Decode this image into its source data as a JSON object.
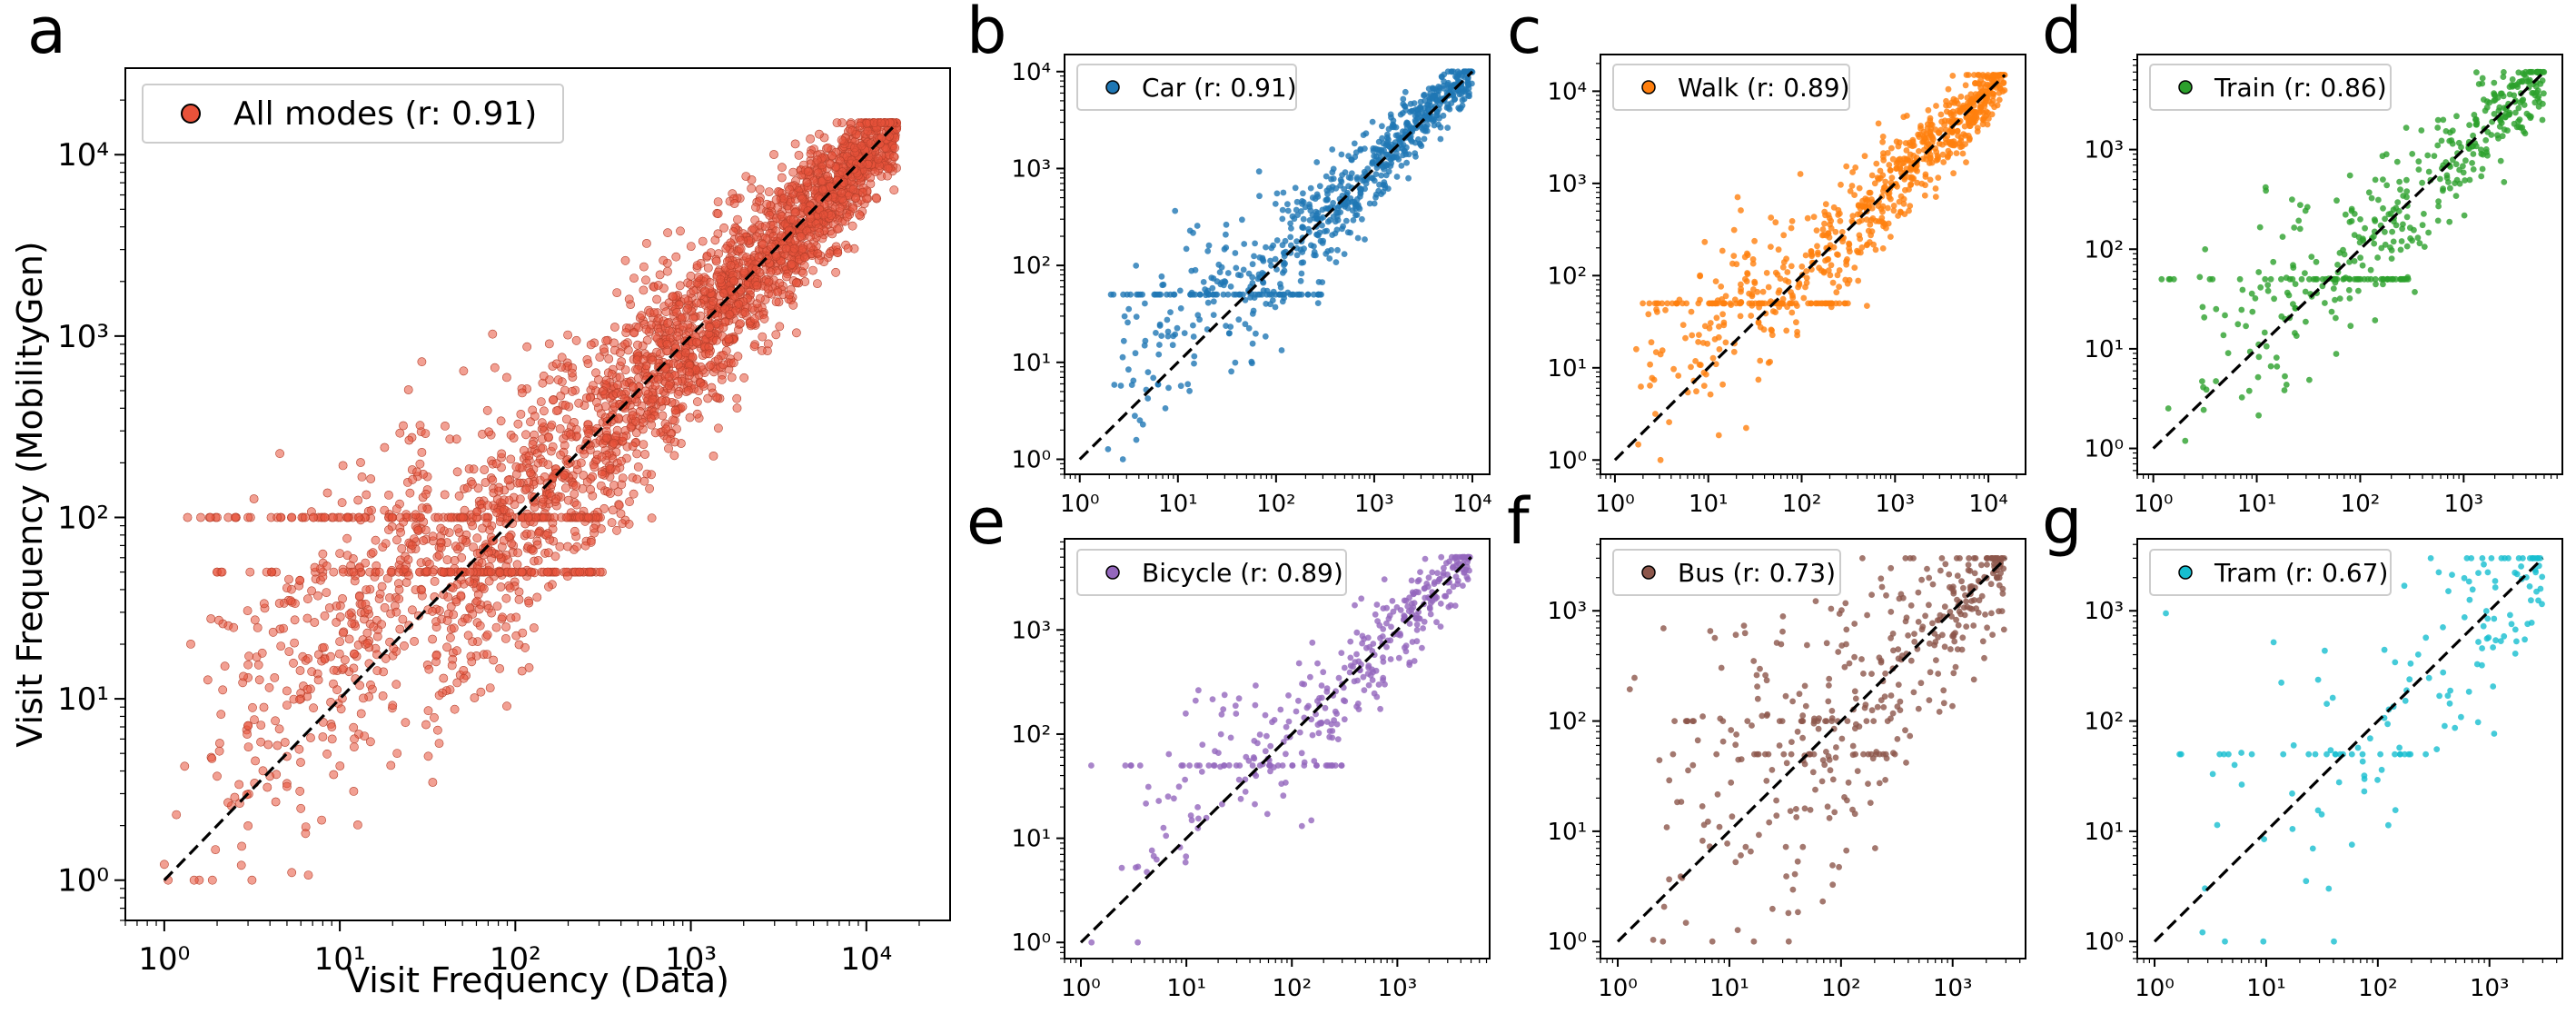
{
  "chart_data": [
    {
      "panel": "a",
      "type": "scatter",
      "legend": "All modes (r: 0.91)",
      "color": "#E8523A",
      "r": 0.91,
      "xlabel": "Visit Frequency (Data)",
      "ylabel": "Visit Frequency (MobilityGen)",
      "xscale": "log",
      "yscale": "log",
      "xlim": [
        0.6,
        30000
      ],
      "ylim": [
        0.6,
        30000
      ],
      "diagonal": [
        [
          1,
          1
        ],
        [
          15000,
          15000
        ]
      ],
      "xticks": [
        1,
        10,
        100,
        1000,
        10000
      ],
      "yticks": [
        1,
        10,
        100,
        1000,
        10000
      ],
      "legend_loc": "upper-left",
      "n_points": 3000,
      "band_values": [
        50,
        100
      ],
      "max_x": 15000
    },
    {
      "panel": "b",
      "type": "scatter",
      "legend": "Car (r: 0.91)",
      "color": "#1F77B4",
      "r": 0.91,
      "xlabel": "",
      "ylabel": "",
      "xscale": "log",
      "yscale": "log",
      "xlim": [
        0.7,
        15000
      ],
      "ylim": [
        0.7,
        15000
      ],
      "diagonal": [
        [
          1,
          1
        ],
        [
          10000,
          10000
        ]
      ],
      "xticks": [
        1,
        10,
        100,
        1000,
        10000
      ],
      "yticks": [
        1,
        10,
        100,
        1000,
        10000
      ],
      "legend_loc": "upper-left",
      "n_points": 800,
      "band_values": [
        50
      ],
      "max_x": 10000
    },
    {
      "panel": "c",
      "type": "scatter",
      "legend": "Walk (r: 0.89)",
      "color": "#FF7F0E",
      "r": 0.89,
      "xlabel": "",
      "ylabel": "",
      "xscale": "log",
      "yscale": "log",
      "xlim": [
        0.7,
        25000
      ],
      "ylim": [
        0.7,
        25000
      ],
      "diagonal": [
        [
          1,
          1
        ],
        [
          15000,
          15000
        ]
      ],
      "xticks": [
        1,
        10,
        100,
        1000,
        10000
      ],
      "yticks": [
        1,
        10,
        100,
        1000,
        10000
      ],
      "legend_loc": "upper-left",
      "n_points": 800,
      "band_values": [
        50
      ],
      "max_x": 15000
    },
    {
      "panel": "d",
      "type": "scatter",
      "legend": "Train (r: 0.86)",
      "color": "#2CA02C",
      "r": 0.86,
      "xlabel": "",
      "ylabel": "",
      "xscale": "log",
      "yscale": "log",
      "xlim": [
        0.7,
        9000
      ],
      "ylim": [
        0.55,
        9000
      ],
      "diagonal": [
        [
          1,
          1
        ],
        [
          6000,
          6000
        ]
      ],
      "xticks": [
        1,
        10,
        100,
        1000
      ],
      "yticks": [
        1,
        10,
        100,
        1000
      ],
      "legend_loc": "upper-left",
      "n_points": 450,
      "band_values": [
        50
      ],
      "max_x": 6000
    },
    {
      "panel": "e",
      "type": "scatter",
      "legend": "Bicycle (r: 0.89)",
      "color": "#9467BD",
      "r": 0.89,
      "xlabel": "",
      "ylabel": "",
      "xscale": "log",
      "yscale": "log",
      "xlim": [
        0.7,
        7500
      ],
      "ylim": [
        0.7,
        7500
      ],
      "diagonal": [
        [
          1,
          1
        ],
        [
          5000,
          5000
        ]
      ],
      "xticks": [
        1,
        10,
        100,
        1000
      ],
      "yticks": [
        1,
        10,
        100,
        1000
      ],
      "legend_loc": "upper-left",
      "n_points": 380,
      "band_values": [
        50
      ],
      "max_x": 5000
    },
    {
      "panel": "f",
      "type": "scatter",
      "legend": "Bus (r: 0.73)",
      "color": "#8C564B",
      "r": 0.73,
      "xlabel": "",
      "ylabel": "",
      "xscale": "log",
      "yscale": "log",
      "xlim": [
        0.7,
        4500
      ],
      "ylim": [
        0.7,
        4500
      ],
      "diagonal": [
        [
          1,
          1
        ],
        [
          3000,
          3000
        ]
      ],
      "xticks": [
        1,
        10,
        100,
        1000
      ],
      "yticks": [
        1,
        10,
        100,
        1000
      ],
      "legend_loc": "upper-left",
      "n_points": 420,
      "band_values": [
        50,
        100
      ],
      "max_x": 3000
    },
    {
      "panel": "g",
      "type": "scatter",
      "legend": "Tram (r: 0.67)",
      "color": "#17BECF",
      "r": 0.67,
      "xlabel": "",
      "ylabel": "",
      "xscale": "log",
      "yscale": "log",
      "xlim": [
        0.7,
        4500
      ],
      "ylim": [
        0.7,
        4500
      ],
      "diagonal": [
        [
          1,
          1
        ],
        [
          3000,
          3000
        ]
      ],
      "xticks": [
        1,
        10,
        100,
        1000
      ],
      "yticks": [
        1,
        10,
        100,
        1000
      ],
      "legend_loc": "upper-left",
      "n_points": 160,
      "band_values": [
        50
      ],
      "max_x": 3000
    }
  ]
}
